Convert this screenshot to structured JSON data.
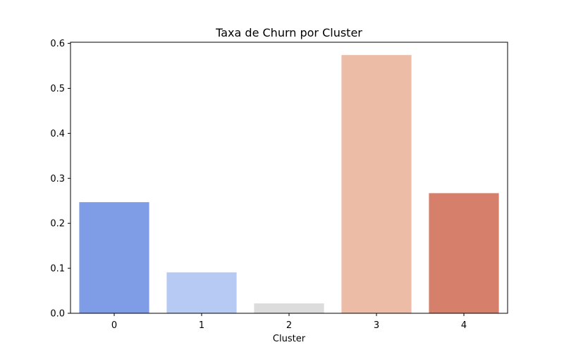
{
  "chart_data": {
    "type": "bar",
    "title": "Taxa de Churn por Cluster",
    "xlabel": "Cluster",
    "ylabel": "",
    "categories": [
      "0",
      "1",
      "2",
      "3",
      "4"
    ],
    "values": [
      0.247,
      0.091,
      0.022,
      0.574,
      0.267
    ],
    "colors": [
      "#7f9de6",
      "#b6caf3",
      "#dcdcdc",
      "#ecbca6",
      "#d6806c"
    ],
    "ylim": [
      0,
      0.6
    ],
    "yticks": [
      "0.0",
      "0.1",
      "0.2",
      "0.3",
      "0.4",
      "0.5",
      "0.6"
    ],
    "grid": false,
    "legend": "none"
  }
}
